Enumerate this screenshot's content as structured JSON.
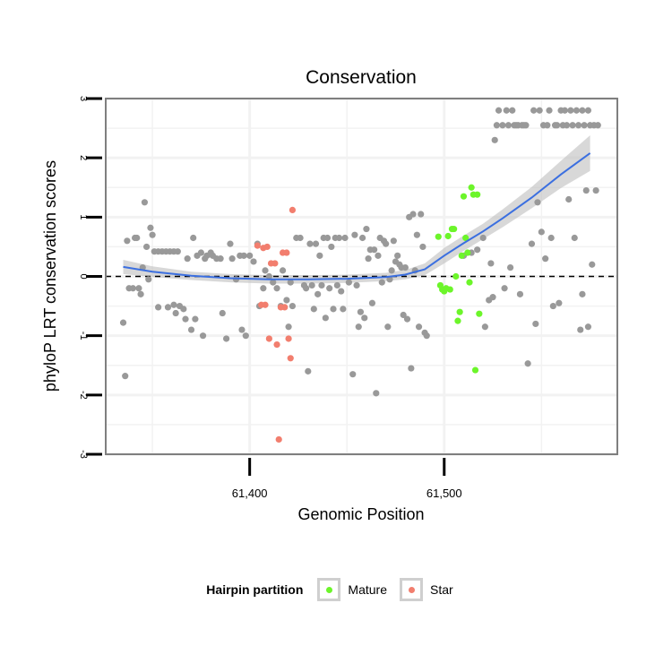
{
  "chart_data": {
    "type": "scatter",
    "title": "Conservation",
    "xlabel": "Genomic Position",
    "ylabel": "phyloP LRT conservation scores",
    "xlim": [
      61326,
      61589
    ],
    "ylim": [
      -3,
      3
    ],
    "xticks": [
      61400,
      61500
    ],
    "xtick_labels": [
      "61,400",
      "61,500"
    ],
    "yticks": [
      -3,
      -2,
      -1,
      0,
      1,
      2,
      3
    ],
    "ytick_labels": [
      "-3",
      "-2",
      "-1",
      "0",
      "1",
      "2",
      "3"
    ],
    "grid": true,
    "reference_line": {
      "y": 0,
      "style": "dashed"
    },
    "legend": {
      "title": "Hairpin partition",
      "placement": "bottom",
      "entries": [
        {
          "label": "Mature",
          "color": "#6CF52A"
        },
        {
          "label": "Star",
          "color": "#F27E6E"
        }
      ]
    },
    "colors": {
      "other": "#999999",
      "Mature": "#6CF52A",
      "Star": "#F27E6E",
      "smooth": "#3B6FE0",
      "band": "#BEBEBE"
    },
    "smooth": {
      "x": [
        61335,
        61350,
        61370,
        61390,
        61410,
        61430,
        61450,
        61470,
        61480,
        61490,
        61500,
        61510,
        61520,
        61530,
        61545,
        61560,
        61575
      ],
      "y": [
        0.16,
        0.08,
        0.01,
        -0.03,
        -0.05,
        -0.05,
        -0.04,
        -0.01,
        0.03,
        0.12,
        0.35,
        0.56,
        0.76,
        0.98,
        1.33,
        1.72,
        2.08
      ],
      "band": [
        0.12,
        0.09,
        0.07,
        0.07,
        0.07,
        0.07,
        0.07,
        0.07,
        0.08,
        0.1,
        0.13,
        0.13,
        0.13,
        0.15,
        0.18,
        0.23,
        0.3
      ]
    },
    "series": [
      {
        "name": "Other",
        "points": [
          [
            61335,
            -0.78
          ],
          [
            61336,
            -1.68
          ],
          [
            61337,
            0.6
          ],
          [
            61338,
            -0.2
          ],
          [
            61340,
            -0.2
          ],
          [
            61341,
            0.65
          ],
          [
            61342,
            0.65
          ],
          [
            61343,
            -0.2
          ],
          [
            61344,
            -0.3
          ],
          [
            61345,
            0.15
          ],
          [
            61346,
            1.25
          ],
          [
            61347,
            0.5
          ],
          [
            61348,
            -0.05
          ],
          [
            61349,
            0.82
          ],
          [
            61350,
            0.7
          ],
          [
            61351,
            0.42
          ],
          [
            61353,
            0.42
          ],
          [
            61355,
            0.42
          ],
          [
            61357,
            0.42
          ],
          [
            61359,
            0.42
          ],
          [
            61361,
            0.42
          ],
          [
            61363,
            0.42
          ],
          [
            61353,
            -0.52
          ],
          [
            61358,
            -0.52
          ],
          [
            61361,
            -0.48
          ],
          [
            61362,
            -0.62
          ],
          [
            61364,
            -0.5
          ],
          [
            61366,
            -0.55
          ],
          [
            61367,
            -0.72
          ],
          [
            61368,
            0.3
          ],
          [
            61370,
            -0.9
          ],
          [
            61371,
            0.65
          ],
          [
            61372,
            -0.72
          ],
          [
            61373,
            0.35
          ],
          [
            61375,
            0.4
          ],
          [
            61376,
            -1.0
          ],
          [
            61377,
            0.3
          ],
          [
            61378,
            0.35
          ],
          [
            61380,
            0.4
          ],
          [
            61381,
            0.35
          ],
          [
            61383,
            0.3
          ],
          [
            61385,
            0.3
          ],
          [
            61386,
            -0.62
          ],
          [
            61388,
            -1.05
          ],
          [
            61390,
            0.55
          ],
          [
            61391,
            0.3
          ],
          [
            61393,
            -0.05
          ],
          [
            61395,
            0.35
          ],
          [
            61396,
            -0.9
          ],
          [
            61397,
            0.35
          ],
          [
            61398,
            -1.0
          ],
          [
            61400,
            0.35
          ],
          [
            61402,
            0.25
          ],
          [
            61404,
            0.55
          ],
          [
            61405,
            -0.5
          ],
          [
            61407,
            -0.2
          ],
          [
            61408,
            0.1
          ],
          [
            61410,
            0.0
          ],
          [
            61412,
            -0.1
          ],
          [
            61414,
            -0.2
          ],
          [
            61416,
            -0.5
          ],
          [
            61417,
            0.1
          ],
          [
            61419,
            -0.4
          ],
          [
            61420,
            -0.85
          ],
          [
            61421,
            -0.1
          ],
          [
            61422,
            -0.5
          ],
          [
            61424,
            0.65
          ],
          [
            61426,
            0.65
          ],
          [
            61428,
            -0.15
          ],
          [
            61429,
            -0.2
          ],
          [
            61430,
            -1.6
          ],
          [
            61431,
            0.55
          ],
          [
            61432,
            -0.15
          ],
          [
            61433,
            -0.55
          ],
          [
            61434,
            0.55
          ],
          [
            61435,
            -0.3
          ],
          [
            61436,
            0.35
          ],
          [
            61437,
            -0.15
          ],
          [
            61438,
            0.65
          ],
          [
            61439,
            -0.7
          ],
          [
            61440,
            0.65
          ],
          [
            61441,
            -0.2
          ],
          [
            61442,
            0.5
          ],
          [
            61443,
            -0.55
          ],
          [
            61444,
            0.65
          ],
          [
            61445,
            -0.15
          ],
          [
            61446,
            0.65
          ],
          [
            61447,
            -0.25
          ],
          [
            61448,
            -0.55
          ],
          [
            61449,
            0.65
          ],
          [
            61451,
            -0.1
          ],
          [
            61453,
            -1.65
          ],
          [
            61454,
            0.7
          ],
          [
            61455,
            -0.15
          ],
          [
            61456,
            -0.85
          ],
          [
            61457,
            -0.6
          ],
          [
            61458,
            0.65
          ],
          [
            61459,
            -0.7
          ],
          [
            61460,
            0.8
          ],
          [
            61461,
            0.3
          ],
          [
            61462,
            0.45
          ],
          [
            61463,
            -0.45
          ],
          [
            61464,
            0.45
          ],
          [
            61465,
            -1.97
          ],
          [
            61466,
            0.35
          ],
          [
            61467,
            0.65
          ],
          [
            61468,
            -0.1
          ],
          [
            61469,
            0.6
          ],
          [
            61470,
            0.55
          ],
          [
            61471,
            -0.85
          ],
          [
            61472,
            -0.05
          ],
          [
            61473,
            0.1
          ],
          [
            61474,
            0.6
          ],
          [
            61475,
            0.25
          ],
          [
            61476,
            0.35
          ],
          [
            61477,
            0.2
          ],
          [
            61478,
            0.15
          ],
          [
            61479,
            -0.65
          ],
          [
            61480,
            0.15
          ],
          [
            61481,
            -0.72
          ],
          [
            61482,
            1.0
          ],
          [
            61483,
            -1.55
          ],
          [
            61484,
            1.05
          ],
          [
            61485,
            0.1
          ],
          [
            61486,
            0.7
          ],
          [
            61487,
            -0.85
          ],
          [
            61488,
            1.05
          ],
          [
            61489,
            0.5
          ],
          [
            61490,
            -0.95
          ],
          [
            61491,
            -1.0
          ],
          [
            61510,
            0.35
          ],
          [
            61514,
            0.4
          ],
          [
            61517,
            0.45
          ],
          [
            61520,
            0.65
          ],
          [
            61521,
            -0.85
          ],
          [
            61523,
            -0.4
          ],
          [
            61524,
            0.22
          ],
          [
            61525,
            -0.35
          ],
          [
            61526,
            2.3
          ],
          [
            61527,
            2.55
          ],
          [
            61528,
            2.8
          ],
          [
            61530,
            2.55
          ],
          [
            61531,
            -0.2
          ],
          [
            61532,
            2.8
          ],
          [
            61533,
            2.55
          ],
          [
            61534,
            0.15
          ],
          [
            61535,
            2.8
          ],
          [
            61536,
            2.55
          ],
          [
            61537,
            2.55
          ],
          [
            61538,
            2.55
          ],
          [
            61539,
            -0.3
          ],
          [
            61540,
            2.55
          ],
          [
            61541,
            2.55
          ],
          [
            61542,
            2.55
          ],
          [
            61543,
            -1.47
          ],
          [
            61545,
            0.55
          ],
          [
            61546,
            2.8
          ],
          [
            61547,
            -0.8
          ],
          [
            61548,
            1.25
          ],
          [
            61549,
            2.8
          ],
          [
            61550,
            0.75
          ],
          [
            61551,
            2.55
          ],
          [
            61552,
            0.3
          ],
          [
            61553,
            2.55
          ],
          [
            61554,
            2.8
          ],
          [
            61555,
            0.65
          ],
          [
            61556,
            -0.5
          ],
          [
            61557,
            2.55
          ],
          [
            61558,
            2.55
          ],
          [
            61559,
            -0.45
          ],
          [
            61560,
            2.8
          ],
          [
            61561,
            2.55
          ],
          [
            61562,
            2.8
          ],
          [
            61563,
            2.55
          ],
          [
            61564,
            1.3
          ],
          [
            61565,
            2.8
          ],
          [
            61566,
            2.55
          ],
          [
            61567,
            0.65
          ],
          [
            61568,
            2.8
          ],
          [
            61569,
            2.55
          ],
          [
            61570,
            -0.9
          ],
          [
            61571,
            2.8
          ],
          [
            61572,
            2.55
          ],
          [
            61573,
            1.45
          ],
          [
            61574,
            2.8
          ],
          [
            61575,
            2.55
          ],
          [
            61576,
            0.2
          ],
          [
            61577,
            2.55
          ],
          [
            61578,
            1.45
          ],
          [
            61579,
            2.55
          ],
          [
            61571,
            -0.3
          ],
          [
            61574,
            -0.85
          ]
        ]
      },
      {
        "name": "Mature",
        "points": [
          [
            61497,
            0.67
          ],
          [
            61498,
            -0.15
          ],
          [
            61499,
            -0.22
          ],
          [
            61500,
            -0.25
          ],
          [
            61501,
            -0.2
          ],
          [
            61502,
            0.68
          ],
          [
            61503,
            -0.22
          ],
          [
            61504,
            0.8
          ],
          [
            61505,
            0.8
          ],
          [
            61506,
            0.0
          ],
          [
            61507,
            -0.75
          ],
          [
            61508,
            -0.6
          ],
          [
            61509,
            0.35
          ],
          [
            61510,
            1.35
          ],
          [
            61511,
            0.65
          ],
          [
            61512,
            0.4
          ],
          [
            61513,
            -0.1
          ],
          [
            61514,
            1.5
          ],
          [
            61515,
            1.38
          ],
          [
            61516,
            -1.58
          ],
          [
            61517,
            1.38
          ],
          [
            61518,
            -0.63
          ]
        ]
      },
      {
        "name": "Star",
        "points": [
          [
            61404,
            0.52
          ],
          [
            61406,
            -0.48
          ],
          [
            61407,
            0.48
          ],
          [
            61408,
            -0.48
          ],
          [
            61409,
            0.5
          ],
          [
            61410,
            -1.05
          ],
          [
            61411,
            0.22
          ],
          [
            61413,
            0.22
          ],
          [
            61414,
            -1.15
          ],
          [
            61415,
            -2.75
          ],
          [
            61416,
            -0.52
          ],
          [
            61417,
            0.4
          ],
          [
            61418,
            -0.52
          ],
          [
            61419,
            0.4
          ],
          [
            61420,
            -1.05
          ],
          [
            61421,
            -1.38
          ],
          [
            61422,
            1.12
          ]
        ]
      }
    ]
  }
}
